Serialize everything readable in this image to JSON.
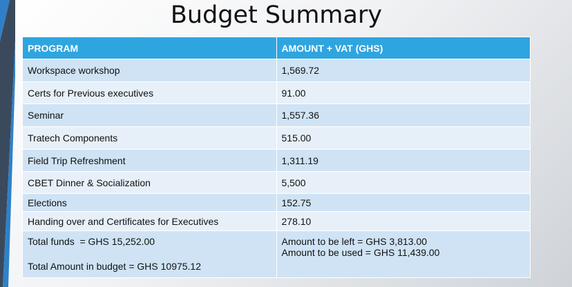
{
  "title": "Budget Summary",
  "table": {
    "headers": [
      "PROGRAM",
      "AMOUNT + VAT (GHS)"
    ],
    "rows": [
      {
        "program": "Workspace workshop",
        "amount": "1,569.72"
      },
      {
        "program": "Certs for Previous executives",
        "amount": "91.00"
      },
      {
        "program": "Seminar",
        "amount": "1,557.36"
      },
      {
        "program": "Tratech Components",
        "amount": "515.00"
      },
      {
        "program": "Field Trip Refreshment",
        "amount": "1,311.19"
      },
      {
        "program": "CBET Dinner & Socialization",
        "amount": "5,500"
      },
      {
        "program": "Elections",
        "amount": "152.75"
      },
      {
        "program": "Handing over and Certificates for Executives",
        "amount": "278.10"
      }
    ],
    "summary": {
      "total_funds": "Total funds  = GHS 15,252.00",
      "total_budget": "Total Amount in budget = GHS 10975.12",
      "amount_left": "Amount to be left = GHS 3,813.00",
      "amount_used": "Amount to be used = GHS 11,439.00"
    }
  },
  "colors": {
    "header": "#2fa5e0",
    "row_dark": "#cfe3f4",
    "row_light": "#e7f0f9",
    "accent_dark": "#3a4a5c",
    "accent_blue": "#2f80c8"
  }
}
